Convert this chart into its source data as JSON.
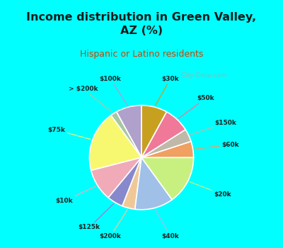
{
  "title": "Income distribution in Green Valley,\nAZ (%)",
  "subtitle": "Hispanic or Latino residents",
  "background_color": "#00FFFF",
  "chart_bg_top": "#e0f2f1",
  "chart_bg_bottom": "#c8e6c9",
  "watermark": "  City-Data.com",
  "labels": [
    "$100k",
    "> $200k",
    "$75k",
    "$10k",
    "$125k",
    "$200k",
    "$40k",
    "$20k",
    "$60k",
    "$150k",
    "$50k",
    "$30k"
  ],
  "values": [
    8,
    2,
    19,
    10,
    5,
    4,
    12,
    15,
    5,
    4,
    8,
    8
  ],
  "colors": [
    "#b0a0cc",
    "#a8c8a0",
    "#f8f870",
    "#f0aab8",
    "#8888cc",
    "#f0c898",
    "#a0c0e8",
    "#c8f080",
    "#f0a060",
    "#c0b8a8",
    "#f07898",
    "#c8a020"
  ],
  "startangle": 90
}
